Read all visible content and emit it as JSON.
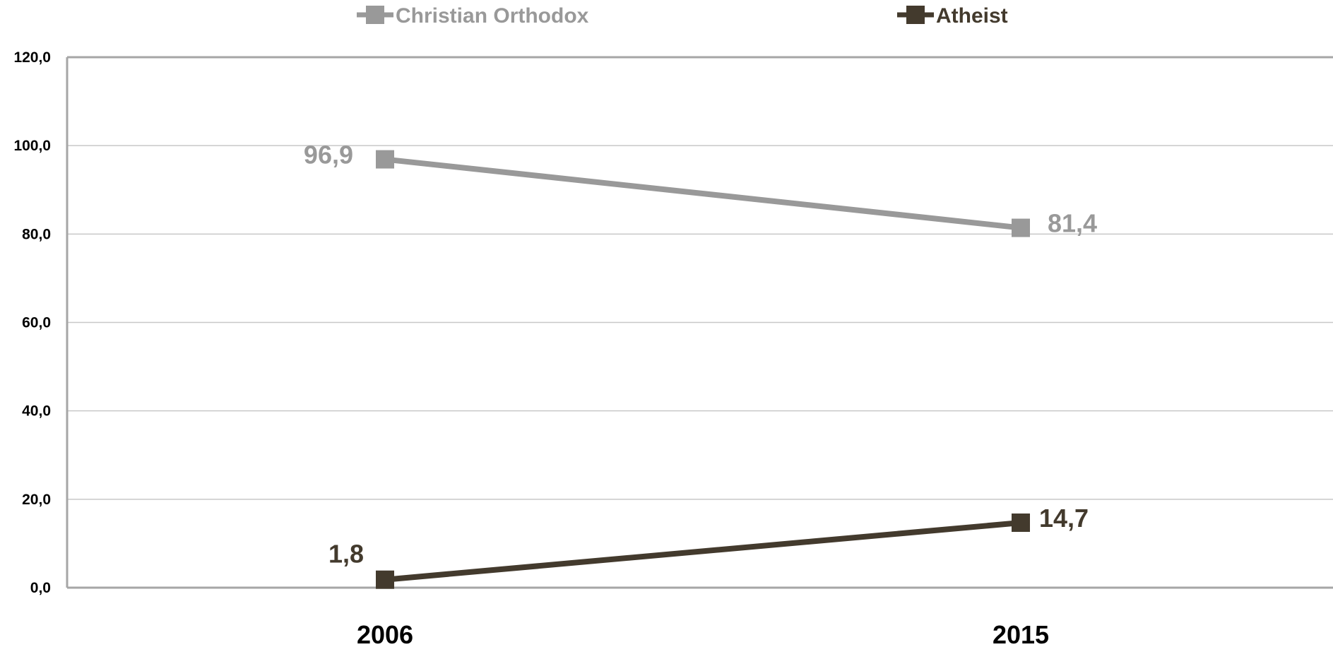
{
  "chart_data": {
    "type": "line",
    "categories": [
      "2006",
      "2015"
    ],
    "series": [
      {
        "name": "Christian Orthodox",
        "values": [
          96.9,
          81.4
        ],
        "labels": [
          "96,9",
          "81,4"
        ],
        "color": "#999999"
      },
      {
        "name": "Atheist",
        "values": [
          1.8,
          14.7
        ],
        "labels": [
          "1,8",
          "14,7"
        ],
        "color": "#433a2d"
      }
    ],
    "yticks": [
      0,
      20,
      40,
      60,
      80,
      100,
      120
    ],
    "ytick_labels": [
      "0,0",
      "20,0",
      "40,0",
      "60,0",
      "80,0",
      "100,0",
      "120,0"
    ],
    "ylim": [
      0,
      120
    ],
    "grid": true,
    "legend_position": "top",
    "title": "",
    "xlabel": "",
    "ylabel": ""
  }
}
